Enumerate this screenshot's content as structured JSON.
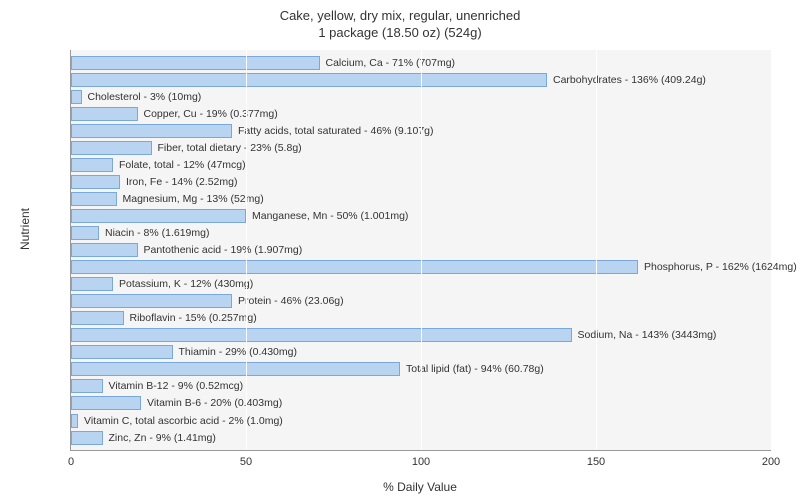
{
  "title_line1": "Cake, yellow, dry mix, regular, unenriched",
  "title_line2": "1 package (18.50 oz) (524g)",
  "y_axis_label": "Nutrient",
  "x_axis_label": "% Daily Value",
  "chart": {
    "type": "bar",
    "orientation": "horizontal",
    "background_color": "#f5f5f5",
    "bar_fill": "#b8d4f0",
    "bar_stroke": "#7aa8d8",
    "grid_color": "#ffffff",
    "xlim": [
      0,
      200
    ],
    "x_ticks": [
      0,
      50,
      100,
      150,
      200
    ],
    "label_fontsize": 10.5,
    "tick_fontsize": 11,
    "axis_label_fontsize": 12,
    "title_fontsize": 13,
    "bars": [
      {
        "label": "Calcium, Ca - 71% (707mg)",
        "value": 71
      },
      {
        "label": "Carbohydrates - 136% (409.24g)",
        "value": 136
      },
      {
        "label": "Cholesterol - 3% (10mg)",
        "value": 3
      },
      {
        "label": "Copper, Cu - 19% (0.377mg)",
        "value": 19
      },
      {
        "label": "Fatty acids, total saturated - 46% (9.107g)",
        "value": 46
      },
      {
        "label": "Fiber, total dietary - 23% (5.8g)",
        "value": 23
      },
      {
        "label": "Folate, total - 12% (47mcg)",
        "value": 12
      },
      {
        "label": "Iron, Fe - 14% (2.52mg)",
        "value": 14
      },
      {
        "label": "Magnesium, Mg - 13% (52mg)",
        "value": 13
      },
      {
        "label": "Manganese, Mn - 50% (1.001mg)",
        "value": 50
      },
      {
        "label": "Niacin - 8% (1.619mg)",
        "value": 8
      },
      {
        "label": "Pantothenic acid - 19% (1.907mg)",
        "value": 19
      },
      {
        "label": "Phosphorus, P - 162% (1624mg)",
        "value": 162
      },
      {
        "label": "Potassium, K - 12% (430mg)",
        "value": 12
      },
      {
        "label": "Protein - 46% (23.06g)",
        "value": 46
      },
      {
        "label": "Riboflavin - 15% (0.257mg)",
        "value": 15
      },
      {
        "label": "Sodium, Na - 143% (3443mg)",
        "value": 143
      },
      {
        "label": "Thiamin - 29% (0.430mg)",
        "value": 29
      },
      {
        "label": "Total lipid (fat) - 94% (60.78g)",
        "value": 94
      },
      {
        "label": "Vitamin B-12 - 9% (0.52mcg)",
        "value": 9
      },
      {
        "label": "Vitamin B-6 - 20% (0.403mg)",
        "value": 20
      },
      {
        "label": "Vitamin C, total ascorbic acid - 2% (1.0mg)",
        "value": 2
      },
      {
        "label": "Zinc, Zn - 9% (1.41mg)",
        "value": 9
      }
    ]
  }
}
